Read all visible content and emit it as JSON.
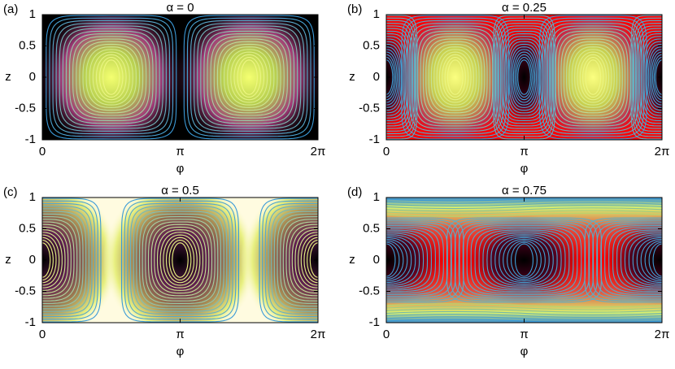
{
  "chart_data": [
    {
      "type": "contour",
      "panel_label": "(a)",
      "title": "α = 0",
      "x_label": "φ",
      "y_label": "z",
      "xlim": [
        0,
        6.28319
      ],
      "ylim": [
        -1,
        1
      ],
      "xticks": [
        0,
        {
          "value": 3.14159,
          "label": "π"
        },
        {
          "value": 6.28319,
          "label": "2π"
        }
      ],
      "yticks": [
        1,
        0.5,
        0,
        -0.5,
        -1
      ]
    },
    {
      "type": "contour",
      "panel_label": "(b)",
      "title": "α = 0.25",
      "x_label": "φ",
      "y_label": "z",
      "xlim": [
        0,
        6.28319
      ],
      "ylim": [
        -1,
        1
      ],
      "xticks": [
        0,
        {
          "value": 3.14159,
          "label": "π"
        },
        {
          "value": 6.28319,
          "label": "2π"
        }
      ],
      "yticks": [
        1,
        0.5,
        0,
        -0.5,
        -1
      ]
    },
    {
      "type": "contour",
      "panel_label": "(c)",
      "title": "α = 0.5",
      "x_label": "φ",
      "y_label": "z",
      "xlim": [
        0,
        6.28319
      ],
      "ylim": [
        -1,
        1
      ],
      "xticks": [
        0,
        {
          "value": 3.14159,
          "label": "π"
        },
        {
          "value": 6.28319,
          "label": "2π"
        }
      ],
      "yticks": [
        1,
        0.5,
        0,
        -0.5,
        -1
      ]
    },
    {
      "type": "contour",
      "panel_label": "(d)",
      "title": "α = 0.75",
      "x_label": "φ",
      "y_label": "z",
      "xlim": [
        0,
        6.28319
      ],
      "ylim": [
        -1,
        1
      ],
      "xticks": [
        0,
        {
          "value": 3.14159,
          "label": "π"
        },
        {
          "value": 6.28319,
          "label": "2π"
        }
      ],
      "yticks": [
        1,
        0.5,
        0,
        -0.5,
        -1
      ]
    }
  ]
}
